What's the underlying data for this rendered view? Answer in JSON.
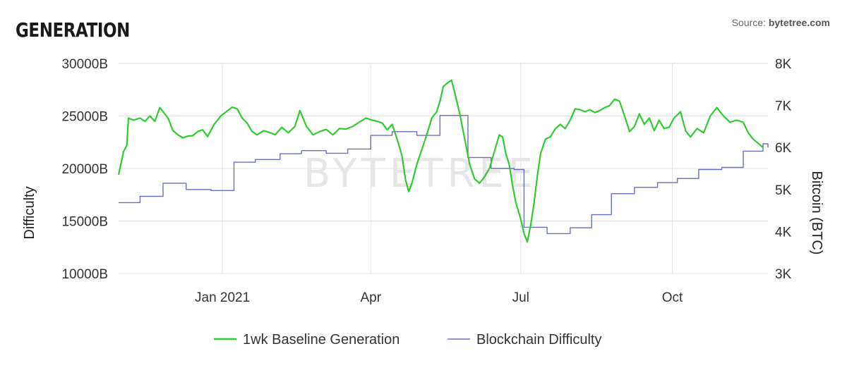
{
  "header": {
    "title": "GENERATION",
    "source_prefix": "Source:",
    "source_name": "bytetree.com"
  },
  "watermark": "BYTETREE",
  "colors": {
    "generation": "#2ecc2e",
    "difficulty": "#6a6fc4",
    "grid": "#e3e3e3"
  },
  "chart_data": {
    "type": "line",
    "title": "GENERATION",
    "xlabel": "",
    "ylabel_left": "Difficulty",
    "ylabel_right": "Bitcoin (BTC)",
    "x_range": [
      "2020-10-30",
      "2021-11-28"
    ],
    "ylim_left": [
      10000,
      30000
    ],
    "ylim_right": [
      3000,
      8000
    ],
    "left_ticks": [
      "10000B",
      "15000B",
      "20000B",
      "25000B",
      "30000B"
    ],
    "right_ticks": [
      "3K",
      "4K",
      "5K",
      "6K",
      "7K",
      "8K"
    ],
    "x_ticks": [
      {
        "date": "2021-01-01",
        "label": "Jan 2021"
      },
      {
        "date": "2021-04-01",
        "label": "Apr"
      },
      {
        "date": "2021-07-01",
        "label": "Jul"
      },
      {
        "date": "2021-10-01",
        "label": "Oct"
      }
    ],
    "grid": true,
    "legend_position": "bottom",
    "series": [
      {
        "name": "1wk Baseline Generation",
        "axis": "right",
        "color": "#2ecc2e",
        "points": [
          [
            "2020-10-30",
            5350
          ],
          [
            "2020-11-02",
            5900
          ],
          [
            "2020-11-04",
            6050
          ],
          [
            "2020-11-05",
            6700
          ],
          [
            "2020-11-08",
            6650
          ],
          [
            "2020-11-12",
            6700
          ],
          [
            "2020-11-15",
            6620
          ],
          [
            "2020-11-18",
            6750
          ],
          [
            "2020-11-21",
            6620
          ],
          [
            "2020-11-24",
            6950
          ],
          [
            "2020-11-26",
            6850
          ],
          [
            "2020-11-29",
            6700
          ],
          [
            "2020-12-02",
            6400
          ],
          [
            "2020-12-05",
            6300
          ],
          [
            "2020-12-08",
            6230
          ],
          [
            "2020-12-11",
            6270
          ],
          [
            "2020-12-14",
            6280
          ],
          [
            "2020-12-17",
            6380
          ],
          [
            "2020-12-20",
            6420
          ],
          [
            "2020-12-23",
            6260
          ],
          [
            "2020-12-27",
            6550
          ],
          [
            "2020-12-31",
            6750
          ],
          [
            "2021-01-04",
            6870
          ],
          [
            "2021-01-07",
            6960
          ],
          [
            "2021-01-10",
            6920
          ],
          [
            "2021-01-13",
            6700
          ],
          [
            "2021-01-16",
            6580
          ],
          [
            "2021-01-19",
            6380
          ],
          [
            "2021-01-22",
            6300
          ],
          [
            "2021-01-26",
            6400
          ],
          [
            "2021-01-30",
            6350
          ],
          [
            "2021-02-02",
            6300
          ],
          [
            "2021-02-06",
            6480
          ],
          [
            "2021-02-10",
            6350
          ],
          [
            "2021-02-14",
            6500
          ],
          [
            "2021-02-17",
            6880
          ],
          [
            "2021-02-21",
            6500
          ],
          [
            "2021-02-25",
            6300
          ],
          [
            "2021-03-01",
            6380
          ],
          [
            "2021-03-05",
            6430
          ],
          [
            "2021-03-09",
            6300
          ],
          [
            "2021-03-13",
            6450
          ],
          [
            "2021-03-17",
            6440
          ],
          [
            "2021-03-21",
            6500
          ],
          [
            "2021-03-25",
            6600
          ],
          [
            "2021-03-29",
            6700
          ],
          [
            "2021-04-02",
            6650
          ],
          [
            "2021-04-05",
            6620
          ],
          [
            "2021-04-08",
            6580
          ],
          [
            "2021-04-11",
            6420
          ],
          [
            "2021-04-14",
            6550
          ],
          [
            "2021-04-17",
            6200
          ],
          [
            "2021-04-20",
            5800
          ],
          [
            "2021-04-22",
            5250
          ],
          [
            "2021-04-24",
            4950
          ],
          [
            "2021-04-26",
            5150
          ],
          [
            "2021-04-29",
            5600
          ],
          [
            "2021-05-02",
            5950
          ],
          [
            "2021-05-05",
            6300
          ],
          [
            "2021-05-08",
            6700
          ],
          [
            "2021-05-11",
            6850
          ],
          [
            "2021-05-13",
            7100
          ],
          [
            "2021-05-15",
            7450
          ],
          [
            "2021-05-18",
            7550
          ],
          [
            "2021-05-20",
            7600
          ],
          [
            "2021-05-22",
            7300
          ],
          [
            "2021-05-25",
            6800
          ],
          [
            "2021-05-28",
            6200
          ],
          [
            "2021-05-31",
            5600
          ],
          [
            "2021-06-03",
            5250
          ],
          [
            "2021-06-06",
            5150
          ],
          [
            "2021-06-09",
            5300
          ],
          [
            "2021-06-12",
            5500
          ],
          [
            "2021-06-15",
            5900
          ],
          [
            "2021-06-18",
            6300
          ],
          [
            "2021-06-20",
            6250
          ],
          [
            "2021-06-22",
            5850
          ],
          [
            "2021-06-24",
            5600
          ],
          [
            "2021-06-26",
            5100
          ],
          [
            "2021-06-28",
            4700
          ],
          [
            "2021-07-01",
            4300
          ],
          [
            "2021-07-03",
            3950
          ],
          [
            "2021-07-05",
            3750
          ],
          [
            "2021-07-07",
            4150
          ],
          [
            "2021-07-09",
            4650
          ],
          [
            "2021-07-11",
            5300
          ],
          [
            "2021-07-13",
            5850
          ],
          [
            "2021-07-16",
            6200
          ],
          [
            "2021-07-19",
            6250
          ],
          [
            "2021-07-22",
            6450
          ],
          [
            "2021-07-25",
            6550
          ],
          [
            "2021-07-28",
            6450
          ],
          [
            "2021-07-31",
            6650
          ],
          [
            "2021-08-03",
            6920
          ],
          [
            "2021-08-06",
            6900
          ],
          [
            "2021-08-09",
            6850
          ],
          [
            "2021-08-12",
            6900
          ],
          [
            "2021-08-15",
            6830
          ],
          [
            "2021-08-18",
            6880
          ],
          [
            "2021-08-21",
            6950
          ],
          [
            "2021-08-24",
            7000
          ],
          [
            "2021-08-27",
            7150
          ],
          [
            "2021-08-30",
            7100
          ],
          [
            "2021-09-02",
            6750
          ],
          [
            "2021-09-05",
            6380
          ],
          [
            "2021-09-08",
            6500
          ],
          [
            "2021-09-11",
            6800
          ],
          [
            "2021-09-14",
            6550
          ],
          [
            "2021-09-17",
            6700
          ],
          [
            "2021-09-20",
            6400
          ],
          [
            "2021-09-23",
            6650
          ],
          [
            "2021-09-26",
            6450
          ],
          [
            "2021-09-29",
            6480
          ],
          [
            "2021-10-02",
            6700
          ],
          [
            "2021-10-06",
            6850
          ],
          [
            "2021-10-09",
            6400
          ],
          [
            "2021-10-12",
            6250
          ],
          [
            "2021-10-16",
            6450
          ],
          [
            "2021-10-20",
            6350
          ],
          [
            "2021-10-24",
            6750
          ],
          [
            "2021-10-28",
            6950
          ],
          [
            "2021-11-01",
            6750
          ],
          [
            "2021-11-05",
            6600
          ],
          [
            "2021-11-09",
            6650
          ],
          [
            "2021-11-13",
            6600
          ],
          [
            "2021-11-16",
            6350
          ],
          [
            "2021-11-19",
            6200
          ],
          [
            "2021-11-22",
            6100
          ],
          [
            "2021-11-25",
            6000
          ]
        ]
      },
      {
        "name": "Blockchain Difficulty",
        "axis": "left",
        "color": "#6a6fc4",
        "points": [
          [
            "2020-10-30",
            16750
          ],
          [
            "2020-11-12",
            16750
          ],
          [
            "2020-11-12",
            17350
          ],
          [
            "2020-11-26",
            17350
          ],
          [
            "2020-11-26",
            18600
          ],
          [
            "2020-12-10",
            18600
          ],
          [
            "2020-12-10",
            18000
          ],
          [
            "2020-12-25",
            18000
          ],
          [
            "2020-12-25",
            17900
          ],
          [
            "2021-01-08",
            17900
          ],
          [
            "2021-01-08",
            20600
          ],
          [
            "2021-01-21",
            20600
          ],
          [
            "2021-01-21",
            20850
          ],
          [
            "2021-02-05",
            20850
          ],
          [
            "2021-02-05",
            21400
          ],
          [
            "2021-02-18",
            21400
          ],
          [
            "2021-02-18",
            21700
          ],
          [
            "2021-03-05",
            21700
          ],
          [
            "2021-03-05",
            21450
          ],
          [
            "2021-03-18",
            21450
          ],
          [
            "2021-03-18",
            21850
          ],
          [
            "2021-04-01",
            21850
          ],
          [
            "2021-04-01",
            23150
          ],
          [
            "2021-04-14",
            23150
          ],
          [
            "2021-04-14",
            23500
          ],
          [
            "2021-04-29",
            23500
          ],
          [
            "2021-04-29",
            23150
          ],
          [
            "2021-05-13",
            23150
          ],
          [
            "2021-05-13",
            25050
          ],
          [
            "2021-05-30",
            25050
          ],
          [
            "2021-05-30",
            21050
          ],
          [
            "2021-06-13",
            21050
          ],
          [
            "2021-06-13",
            20000
          ],
          [
            "2021-06-27",
            20000
          ],
          [
            "2021-06-27",
            19900
          ],
          [
            "2021-07-03",
            19900
          ],
          [
            "2021-07-03",
            14400
          ],
          [
            "2021-07-17",
            14400
          ],
          [
            "2021-07-17",
            13800
          ],
          [
            "2021-07-31",
            13800
          ],
          [
            "2021-07-31",
            14350
          ],
          [
            "2021-08-13",
            14350
          ],
          [
            "2021-08-13",
            15600
          ],
          [
            "2021-08-25",
            15600
          ],
          [
            "2021-08-25",
            17600
          ],
          [
            "2021-09-08",
            17600
          ],
          [
            "2021-09-08",
            18200
          ],
          [
            "2021-09-22",
            18200
          ],
          [
            "2021-09-22",
            18650
          ],
          [
            "2021-10-04",
            18650
          ],
          [
            "2021-10-04",
            19050
          ],
          [
            "2021-10-17",
            19050
          ],
          [
            "2021-10-17",
            19900
          ],
          [
            "2021-10-31",
            19900
          ],
          [
            "2021-10-31",
            20100
          ],
          [
            "2021-11-13",
            20100
          ],
          [
            "2021-11-13",
            21650
          ],
          [
            "2021-11-25",
            21650
          ],
          [
            "2021-11-25",
            22350
          ],
          [
            "2021-11-28",
            22350
          ],
          [
            "2021-11-28",
            22000
          ]
        ]
      }
    ]
  }
}
